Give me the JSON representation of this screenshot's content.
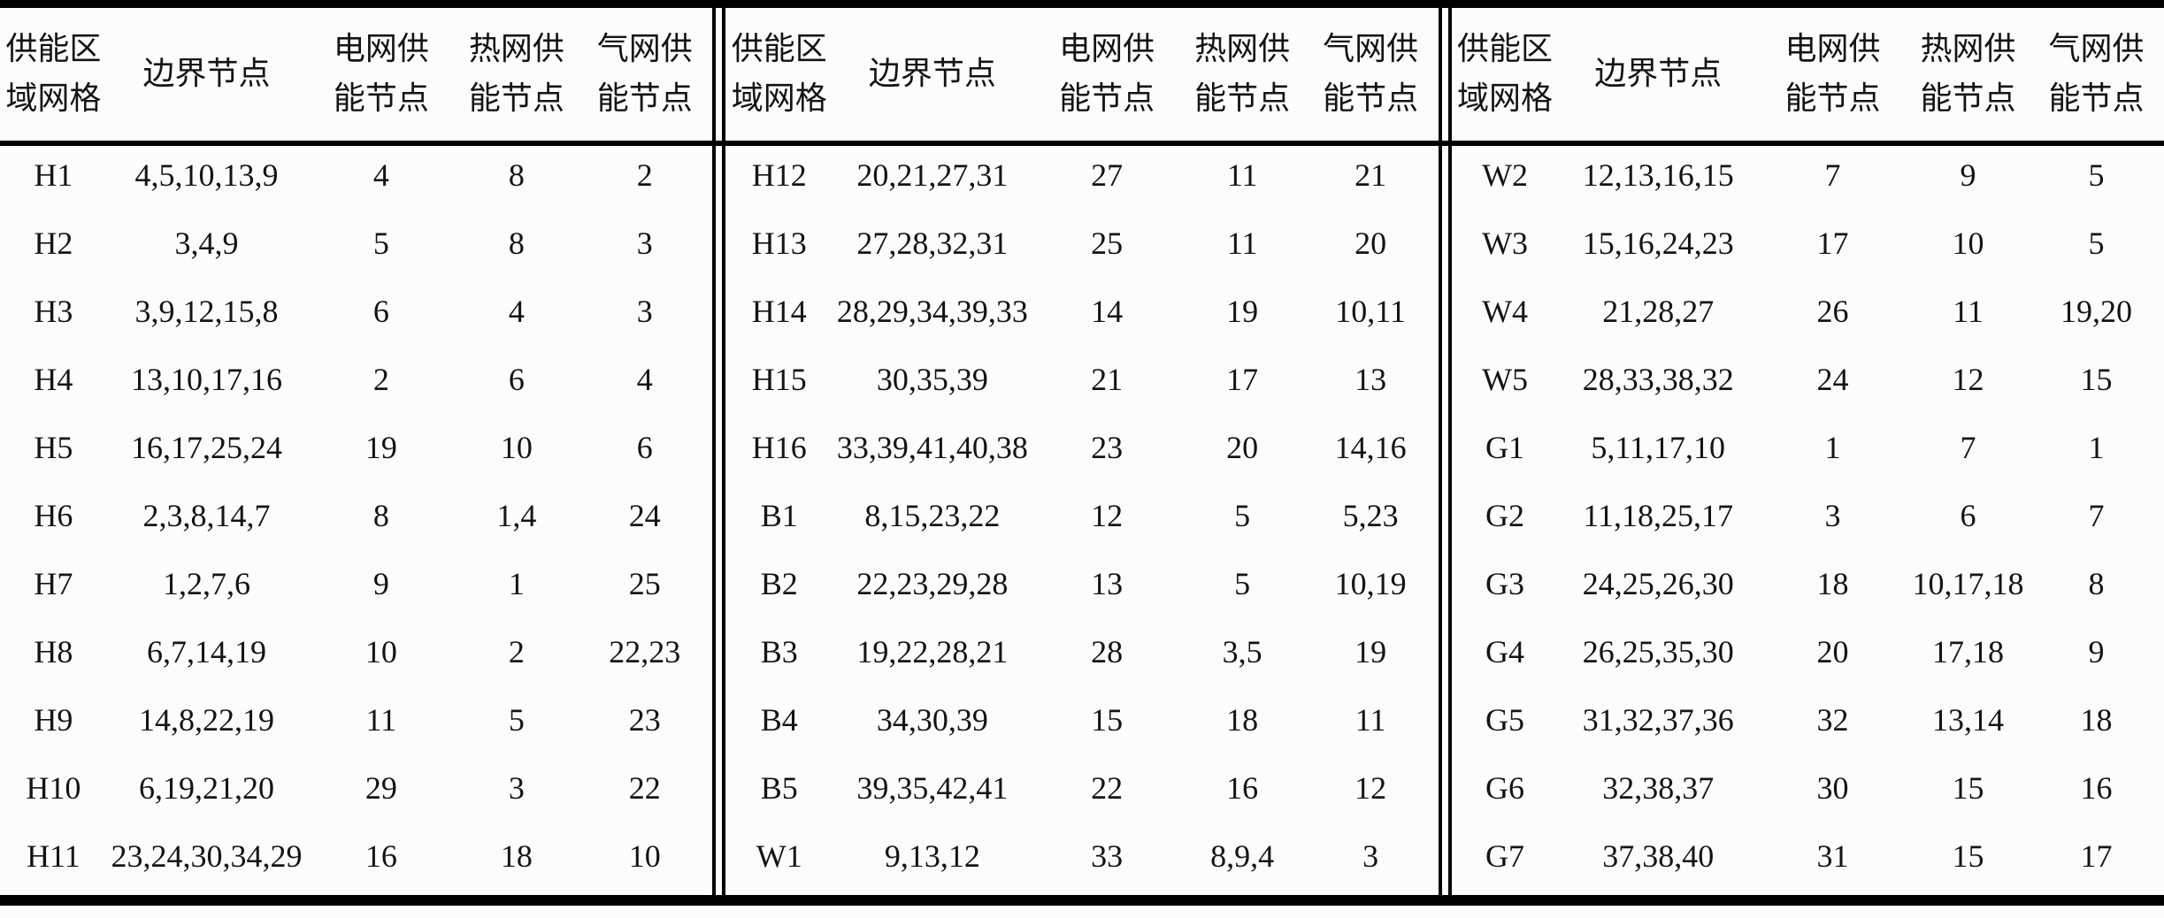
{
  "colors": {
    "background": "#fcfcfc",
    "text": "#141414",
    "rule": "#000000"
  },
  "table": {
    "headers": [
      "供能区\n域网格",
      "边界节点",
      "电网供\n能节点",
      "热网供\n能节点",
      "气网供\n能节点"
    ],
    "sections": [
      {
        "rows": [
          [
            "H1",
            "4,5,10,13,9",
            "4",
            "8",
            "2"
          ],
          [
            "H2",
            "3,4,9",
            "5",
            "8",
            "3"
          ],
          [
            "H3",
            "3,9,12,15,8",
            "6",
            "4",
            "3"
          ],
          [
            "H4",
            "13,10,17,16",
            "2",
            "6",
            "4"
          ],
          [
            "H5",
            "16,17,25,24",
            "19",
            "10",
            "6"
          ],
          [
            "H6",
            "2,3,8,14,7",
            "8",
            "1,4",
            "24"
          ],
          [
            "H7",
            "1,2,7,6",
            "9",
            "1",
            "25"
          ],
          [
            "H8",
            "6,7,14,19",
            "10",
            "2",
            "22,23"
          ],
          [
            "H9",
            "14,8,22,19",
            "11",
            "5",
            "23"
          ],
          [
            "H10",
            "6,19,21,20",
            "29",
            "3",
            "22"
          ],
          [
            "H11",
            "23,24,30,34,29",
            "16",
            "18",
            "10"
          ]
        ]
      },
      {
        "rows": [
          [
            "H12",
            "20,21,27,31",
            "27",
            "11",
            "21"
          ],
          [
            "H13",
            "27,28,32,31",
            "25",
            "11",
            "20"
          ],
          [
            "H14",
            "28,29,34,39,33",
            "14",
            "19",
            "10,11"
          ],
          [
            "H15",
            "30,35,39",
            "21",
            "17",
            "13"
          ],
          [
            "H16",
            "33,39,41,40,38",
            "23",
            "20",
            "14,16"
          ],
          [
            "B1",
            "8,15,23,22",
            "12",
            "5",
            "5,23"
          ],
          [
            "B2",
            "22,23,29,28",
            "13",
            "5",
            "10,19"
          ],
          [
            "B3",
            "19,22,28,21",
            "28",
            "3,5",
            "19"
          ],
          [
            "B4",
            "34,30,39",
            "15",
            "18",
            "11"
          ],
          [
            "B5",
            "39,35,42,41",
            "22",
            "16",
            "12"
          ],
          [
            "W1",
            "9,13,12",
            "33",
            "8,9,4",
            "3"
          ]
        ]
      },
      {
        "rows": [
          [
            "W2",
            "12,13,16,15",
            "7",
            "9",
            "5"
          ],
          [
            "W3",
            "15,16,24,23",
            "17",
            "10",
            "5"
          ],
          [
            "W4",
            "21,28,27",
            "26",
            "11",
            "19,20"
          ],
          [
            "W5",
            "28,33,38,32",
            "24",
            "12",
            "15"
          ],
          [
            "G1",
            "5,11,17,10",
            "1",
            "7",
            "1"
          ],
          [
            "G2",
            "11,18,25,17",
            "3",
            "6",
            "7"
          ],
          [
            "G3",
            "24,25,26,30",
            "18",
            "10,17,18",
            "8"
          ],
          [
            "G4",
            "26,25,35,30",
            "20",
            "17,18",
            "9"
          ],
          [
            "G5",
            "31,32,37,36",
            "32",
            "13,14",
            "18"
          ],
          [
            "G6",
            "32,38,37",
            "30",
            "15",
            "16"
          ],
          [
            "G7",
            "37,38,40",
            "31",
            "15",
            "17"
          ]
        ]
      }
    ],
    "cell_names": [
      "grid-id-cell",
      "boundary-nodes-cell",
      "power-supply-node-cell",
      "heat-supply-node-cell",
      "gas-supply-node-cell"
    ]
  }
}
